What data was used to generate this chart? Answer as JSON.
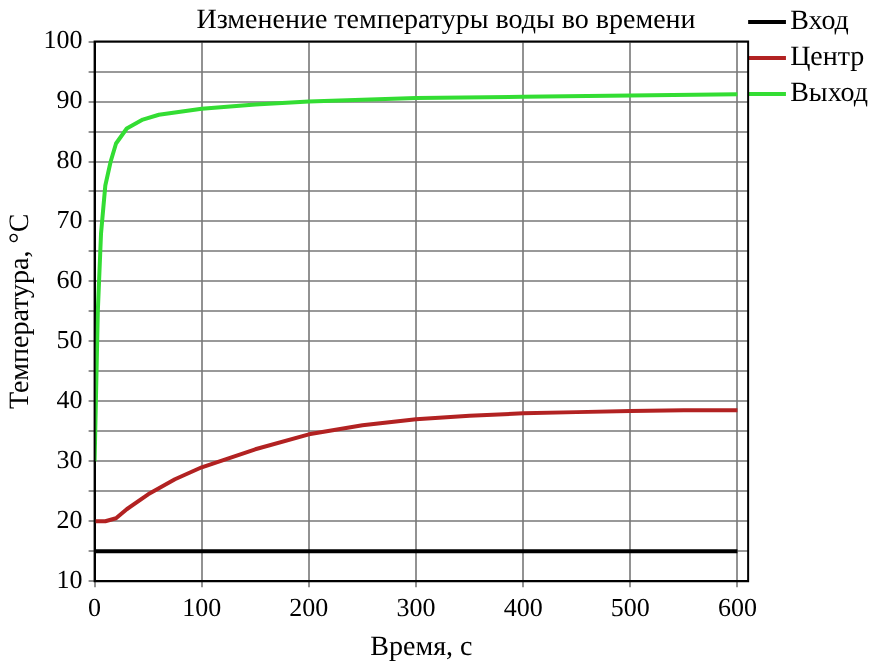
{
  "chart_data": {
    "type": "line",
    "title": "Изменение температуры воды во времени",
    "xlabel": "Время, с",
    "ylabel": "Температура, °C",
    "xlim": [
      0,
      610
    ],
    "xticks": [
      0,
      100,
      200,
      300,
      400,
      500,
      600
    ],
    "ylim": [
      10,
      100
    ],
    "yticks": [
      10,
      {
        "value": 15,
        "label": null
      },
      20,
      {
        "value": 25,
        "label": null
      },
      30,
      {
        "value": 35,
        "label": null
      },
      40,
      {
        "value": 45,
        "label": null
      },
      50,
      {
        "value": 55,
        "label": null
      },
      60,
      {
        "value": 65,
        "label": null
      },
      70,
      {
        "value": 75,
        "label": null
      },
      80,
      {
        "value": 85,
        "label": null
      },
      90,
      {
        "value": 95,
        "label": null
      },
      100
    ],
    "grid": true,
    "legend": "top right",
    "marker": "none",
    "line_style": "solid",
    "series": [
      {
        "name": "Вход",
        "color": "#000000",
        "x": [
          0,
          600
        ],
        "values": [
          15,
          15
        ]
      },
      {
        "name": "Центр",
        "color": "#b22222",
        "x": [
          0,
          10,
          20,
          30,
          50,
          75,
          100,
          150,
          200,
          250,
          300,
          350,
          400,
          450,
          500,
          550,
          600
        ],
        "values": [
          20,
          20,
          20.5,
          22,
          24.5,
          27,
          29,
          32,
          34.5,
          36,
          37,
          37.6,
          38,
          38.2,
          38.4,
          38.5,
          38.5
        ]
      },
      {
        "name": "Выход",
        "color": "#33dd33",
        "x": [
          0,
          3,
          6,
          10,
          15,
          20,
          30,
          45,
          60,
          80,
          100,
          150,
          200,
          250,
          300,
          400,
          500,
          600
        ],
        "values": [
          30,
          55,
          68,
          76,
          80,
          83,
          85.5,
          87,
          87.8,
          88.3,
          88.8,
          89.5,
          90,
          90.3,
          90.6,
          90.8,
          91,
          91.2
        ]
      }
    ]
  }
}
